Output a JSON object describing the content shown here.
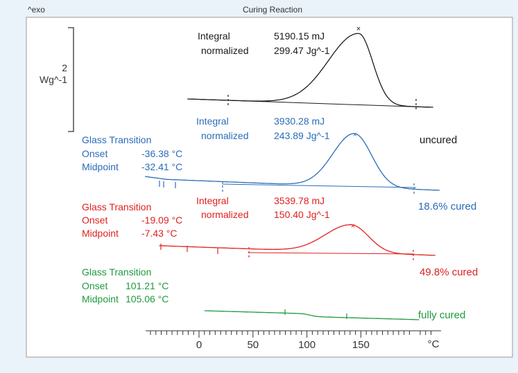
{
  "header": {
    "exo_label": "^exo",
    "title": "Curing Reaction"
  },
  "scale_bar": {
    "value": "2",
    "unit": "Wg^-1"
  },
  "colors": {
    "background": "#eaf2fa",
    "plot_background": "#ffffff",
    "uncured": "#1a1a1a",
    "partly_cured_18": "#2a6cb8",
    "partly_cured_49": "#e02020",
    "fully_cured": "#1e9a3c"
  },
  "chart_data": {
    "type": "line",
    "title": "Curing Reaction",
    "xlabel": "°C",
    "ylabel": "^exo",
    "xlim": [
      -50,
      220
    ],
    "x_ticks": [
      0,
      50,
      100,
      150
    ],
    "x_unit_label": "°C",
    "grid": false,
    "series": [
      {
        "name": "uncured",
        "color": "#1a1a1a",
        "curve_label": "uncured",
        "peak_x": 148,
        "integral_limits": [
          28,
          195
        ],
        "annotations": {
          "integral_label": "Integral",
          "integral_value": "5190.15 mJ",
          "normalized_label": "normalized",
          "normalized_value": "299.47 Jg^-1"
        },
        "glass_transition": null
      },
      {
        "name": "18.6% cured",
        "color": "#2a6cb8",
        "curve_label": "18.6% cured",
        "peak_x": 144,
        "integral_limits": [
          22,
          196
        ],
        "annotations": {
          "integral_label": "Integral",
          "integral_value": "3930.28 mJ",
          "normalized_label": "normalized",
          "normalized_value": "243.89 Jg^-1"
        },
        "glass_transition": {
          "title": "Glass Transition",
          "onset_label": "Onset",
          "onset_value": "-36.38 °C",
          "midpoint_label": "Midpoint",
          "midpoint_value": "-32.41 °C"
        }
      },
      {
        "name": "49.8% cured",
        "color": "#e02020",
        "curve_label": "49.8% cured",
        "peak_x": 141,
        "integral_limits": [
          48,
          196
        ],
        "annotations": {
          "integral_label": "Integral",
          "integral_value": "3539.78 mJ",
          "normalized_label": "normalized",
          "normalized_value": "150.40 Jg^-1"
        },
        "glass_transition": {
          "title": "Glass Transition",
          "onset_label": "Onset",
          "onset_value": "-19.09 °C",
          "midpoint_label": "Midpoint",
          "midpoint_value": "-7.43 °C"
        }
      },
      {
        "name": "fully cured",
        "color": "#1e9a3c",
        "curve_label": "fully cured",
        "peak_x": null,
        "integral_limits": null,
        "annotations": null,
        "glass_transition": {
          "title": "Glass Transition",
          "onset_label": "Onset",
          "onset_value": "101.21 °C",
          "midpoint_label": "Midpoint",
          "midpoint_value": "105.06 °C"
        }
      }
    ]
  }
}
